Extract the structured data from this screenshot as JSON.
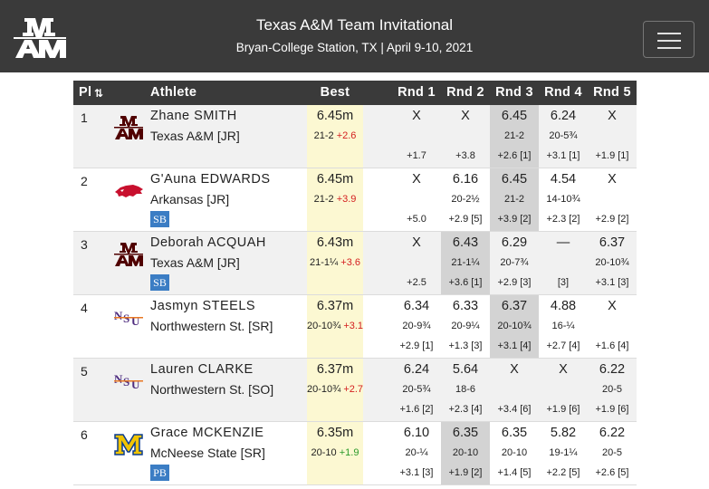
{
  "meet": {
    "title": "Texas A&M Team Invitational",
    "subtitle": "Bryan-College Station, TX | April 9-10, 2021"
  },
  "header": {
    "place": "Pl",
    "sort_glyph": "⇅",
    "athlete": "Athlete",
    "best": "Best",
    "rounds": [
      "Rnd 1",
      "Rnd 2",
      "Rnd 3",
      "Rnd 4",
      "Rnd 5"
    ]
  },
  "colors": {
    "header_bg": "#3a3a3a",
    "best_bg": "#fcf8d2",
    "highlight": "#d3d3d3",
    "badge": "#3b7dc4",
    "wind_plus": "#d42020",
    "wind_minus": "#2a9a2a"
  },
  "rows": [
    {
      "place": "1",
      "name": "Zhane SMITH",
      "team": "Texas A&M [JR]",
      "logo": "texas-am-logo",
      "badge": "",
      "best": {
        "mark": "6.45m",
        "imperial": "21-2",
        "wind": "+2.6"
      },
      "highlight": 2,
      "attempts": [
        {
          "mark": "X",
          "imperial": "",
          "wind": "+1.7"
        },
        {
          "mark": "X",
          "imperial": "",
          "wind": "+3.8"
        },
        {
          "mark": "6.45",
          "imperial": "21-2",
          "wind": "+2.6 [1]"
        },
        {
          "mark": "6.24",
          "imperial": "20-5¾",
          "wind": "+3.1 [1]"
        },
        {
          "mark": "X",
          "imperial": "",
          "wind": "+1.9 [1]"
        }
      ]
    },
    {
      "place": "2",
      "name": "G'Auna EDWARDS",
      "team": "Arkansas [JR]",
      "logo": "arkansas-razorback-logo",
      "badge": "SB",
      "best": {
        "mark": "6.45m",
        "imperial": "21-2",
        "wind": "+3.9"
      },
      "highlight": 2,
      "attempts": [
        {
          "mark": "X",
          "imperial": "",
          "wind": "+5.0"
        },
        {
          "mark": "6.16",
          "imperial": "20-2½",
          "wind": "+2.9 [5]"
        },
        {
          "mark": "6.45",
          "imperial": "21-2",
          "wind": "+3.9 [2]"
        },
        {
          "mark": "4.54",
          "imperial": "14-10¾",
          "wind": "+2.3 [2]"
        },
        {
          "mark": "X",
          "imperial": "",
          "wind": "+2.9 [2]"
        }
      ]
    },
    {
      "place": "3",
      "name": "Deborah ACQUAH",
      "team": "Texas A&M [JR]",
      "logo": "texas-am-logo",
      "badge": "SB",
      "best": {
        "mark": "6.43m",
        "imperial": "21-1¼",
        "wind": "+3.6"
      },
      "highlight": 1,
      "attempts": [
        {
          "mark": "X",
          "imperial": "",
          "wind": "+2.5"
        },
        {
          "mark": "6.43",
          "imperial": "21-1¼",
          "wind": "+3.6 [1]"
        },
        {
          "mark": "6.29",
          "imperial": "20-7¾",
          "wind": "+2.9 [3]"
        },
        {
          "mark": "—",
          "imperial": "",
          "wind": "[3]"
        },
        {
          "mark": "6.37",
          "imperial": "20-10¾",
          "wind": "+3.1 [3]"
        }
      ]
    },
    {
      "place": "4",
      "name": "Jasmyn STEELS",
      "team": "Northwestern St. [SR]",
      "logo": "northwestern-state-logo",
      "badge": "",
      "best": {
        "mark": "6.37m",
        "imperial": "20-10¾",
        "wind": "+3.1"
      },
      "highlight": 2,
      "attempts": [
        {
          "mark": "6.34",
          "imperial": "20-9¾",
          "wind": "+2.9 [1]"
        },
        {
          "mark": "6.33",
          "imperial": "20-9¼",
          "wind": "+1.3 [3]"
        },
        {
          "mark": "6.37",
          "imperial": "20-10¾",
          "wind": "+3.1 [4]"
        },
        {
          "mark": "4.88",
          "imperial": "16-¼",
          "wind": "+2.7 [4]"
        },
        {
          "mark": "X",
          "imperial": "",
          "wind": "+1.6 [4]"
        }
      ]
    },
    {
      "place": "5",
      "name": "Lauren CLARKE",
      "team": "Northwestern St. [SO]",
      "logo": "northwestern-state-logo",
      "badge": "",
      "best": {
        "mark": "6.37m",
        "imperial": "20-10¾",
        "wind": "+2.7"
      },
      "highlight": -1,
      "attempts": [
        {
          "mark": "6.24",
          "imperial": "20-5¾",
          "wind": "+1.6 [2]"
        },
        {
          "mark": "5.64",
          "imperial": "18-6",
          "wind": "+2.3 [4]"
        },
        {
          "mark": "X",
          "imperial": "",
          "wind": "+3.4 [6]"
        },
        {
          "mark": "X",
          "imperial": "",
          "wind": "+1.9 [6]"
        },
        {
          "mark": "6.22",
          "imperial": "20-5",
          "wind": "+1.9 [6]"
        }
      ]
    },
    {
      "place": "6",
      "name": "Grace MCKENZIE",
      "team": "McNeese State [SR]",
      "logo": "mcneese-m-logo",
      "badge": "PB",
      "best": {
        "mark": "6.35m",
        "imperial": "20-10",
        "wind": "+1.9"
      },
      "highlight": 1,
      "attempts": [
        {
          "mark": "6.10",
          "imperial": "20-¼",
          "wind": "+3.1 [3]"
        },
        {
          "mark": "6.35",
          "imperial": "20-10",
          "wind": "+1.9 [2]"
        },
        {
          "mark": "6.35",
          "imperial": "20-10",
          "wind": "+1.4 [5]"
        },
        {
          "mark": "5.82",
          "imperial": "19-1¼",
          "wind": "+2.2 [5]"
        },
        {
          "mark": "6.22",
          "imperial": "20-5",
          "wind": "+2.6 [5]"
        }
      ]
    }
  ]
}
